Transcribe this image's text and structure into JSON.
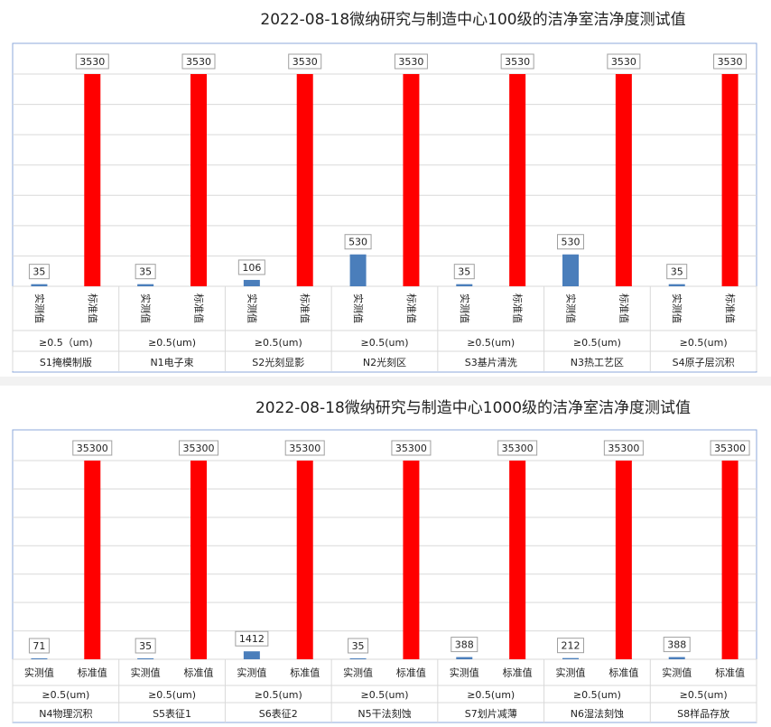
{
  "charts": [
    {
      "type": "bar",
      "title": "2022-08-18微纳研究与制造中心100级的洁净室洁净度测试值",
      "ylim": [
        0,
        3530
      ],
      "grid": true,
      "series_names": [
        "实测值",
        "标准值"
      ],
      "groups": [
        {
          "particle": "≥0.5（um)",
          "location": "S1掩模制版",
          "measured": 35,
          "standard": 3530
        },
        {
          "particle": "≥0.5(um)",
          "location": "N1电子束",
          "measured": 35,
          "standard": 3530
        },
        {
          "particle": "≥0.5(um)",
          "location": "S2光刻显影",
          "measured": 106,
          "standard": 3530
        },
        {
          "particle": "≥0.5(um)",
          "location": "N2光刻区",
          "measured": 530,
          "standard": 3530
        },
        {
          "particle": "≥0.5(um)",
          "location": "S3基片清洗",
          "measured": 35,
          "standard": 3530
        },
        {
          "particle": "≥0.5(um)",
          "location": "N3热工艺区",
          "measured": 530,
          "standard": 3530
        },
        {
          "particle": "≥0.5(um)",
          "location": "S4原子层沉积",
          "measured": 35,
          "standard": 3530
        }
      ]
    },
    {
      "type": "bar",
      "title": "2022-08-18微纳研究与制造中心1000级的洁净室洁净度测试值",
      "ylim": [
        0,
        35300
      ],
      "grid": true,
      "series_names": [
        "实测值",
        "标准值"
      ],
      "groups": [
        {
          "particle": "≥0.5(um)",
          "location": "N4物理沉积",
          "measured": 71,
          "standard": 35300
        },
        {
          "particle": "≥0.5(um)",
          "location": "S5表征1",
          "measured": 35,
          "standard": 35300
        },
        {
          "particle": "≥0.5(um)",
          "location": "S6表征2",
          "measured": 1412,
          "standard": 35300
        },
        {
          "particle": "≥0.5(um)",
          "location": "N5干法刻蚀",
          "measured": 35,
          "standard": 35300
        },
        {
          "particle": "≥0.5(um)",
          "location": "S7划片减薄",
          "measured": 388,
          "standard": 35300
        },
        {
          "particle": "≥0.5(um)",
          "location": "N6湿法刻蚀",
          "measured": 212,
          "standard": 35300
        },
        {
          "particle": "≥0.5(um)",
          "location": "S8样品存放",
          "measured": 388,
          "standard": 35300
        }
      ]
    }
  ],
  "colors": {
    "measured": "#4a7ebb",
    "standard": "#ff0000",
    "grid": "#d9d9d9",
    "frame": "#8eaadb"
  }
}
